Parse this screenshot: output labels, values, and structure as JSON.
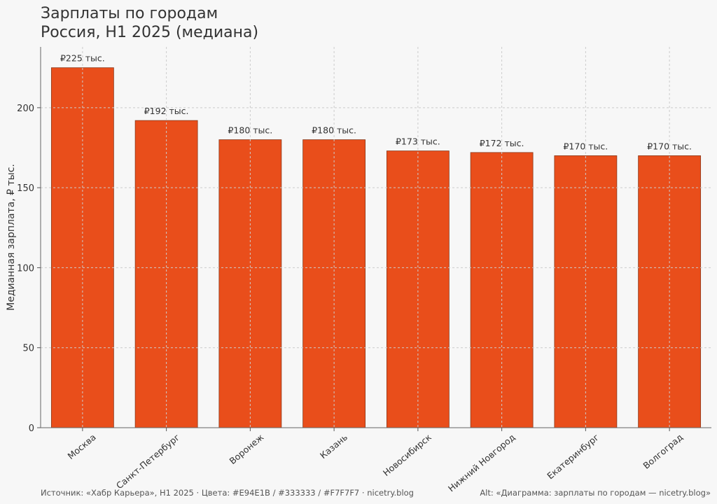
{
  "title": "Зарплаты по городам",
  "subtitle": "Россия, H1 2025 (медиана)",
  "footer": {
    "source": "Источник: «Хабр Карьера», H1 2025   ·   Цвета: #E94E1B / #333333 / #F7F7F7   ·   nicetry.blog",
    "alt": "Alt: «Диаграмма: зарплаты по городам — nicetry.blog»"
  },
  "colors": {
    "bar": "#E94E1B",
    "text": "#333333",
    "background": "#F7F7F7",
    "grid": "#CCCCCC"
  },
  "chart_data": {
    "type": "bar",
    "ylabel": "Медианная зарплата, ₽ тыс.",
    "xlabel": "",
    "ylim": [
      0,
      238
    ],
    "yticks": [
      0,
      50,
      100,
      150,
      200
    ],
    "grid": true,
    "categories": [
      "Москва",
      "Санкт-Петербург",
      "Воронеж",
      "Казань",
      "Новосибирск",
      "Нижний Новгород",
      "Екатеринбург",
      "Волгоград"
    ],
    "values": [
      225,
      192,
      180,
      180,
      173,
      172,
      170,
      170
    ],
    "data_labels": [
      "₽225 тыс.",
      "₽192 тыс.",
      "₽180 тыс.",
      "₽180 тыс.",
      "₽173 тыс.",
      "₽172 тыс.",
      "₽170 тыс.",
      "₽170 тыс."
    ]
  }
}
